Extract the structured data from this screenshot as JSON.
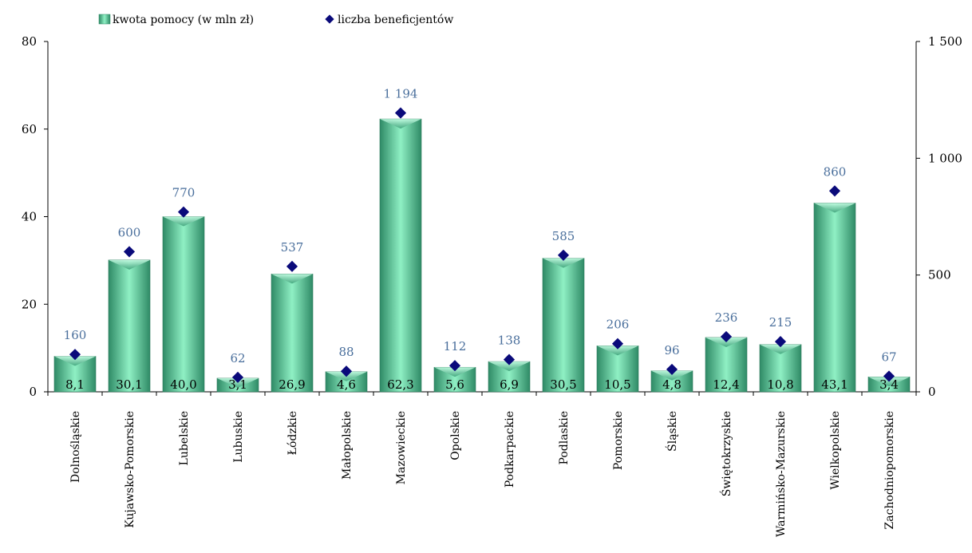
{
  "chart_data": {
    "type": "bar",
    "categories": [
      "Dolnośląskie",
      "Kujawsko-Pomorskie",
      "Lubelskie",
      "Lubuskie",
      "Łódzkie",
      "Małopolskie",
      "Mazowieckie",
      "Opolskie",
      "Podkarpackie",
      "Podlaskie",
      "Pomorskie",
      "Śląskie",
      "Świętokrzyskie",
      "Warmińsko-Mazurskie",
      "Wielkopolskie",
      "Zachodniopomorskie"
    ],
    "series": [
      {
        "name": "kwota pomocy (w mln zł)",
        "type": "bar",
        "axis": "left",
        "values": [
          8.1,
          30.1,
          40.0,
          3.1,
          26.9,
          4.6,
          62.3,
          5.6,
          6.9,
          30.5,
          10.5,
          4.8,
          12.4,
          10.8,
          43.1,
          3.4
        ],
        "labels": [
          "8,1",
          "30,1",
          "40,0",
          "3,1",
          "26,9",
          "4,6",
          "62,3",
          "5,6",
          "6,9",
          "30,5",
          "10,5",
          "4,8",
          "12,4",
          "10,8",
          "43,1",
          "3,4"
        ],
        "color": "#5fd1a2"
      },
      {
        "name": "liczba beneficjentów",
        "type": "scatter",
        "axis": "right",
        "values": [
          160,
          600,
          770,
          62,
          537,
          88,
          1194,
          112,
          138,
          585,
          206,
          96,
          236,
          215,
          860,
          67
        ],
        "labels": [
          "160",
          "600",
          "770",
          "62",
          "537",
          "88",
          "1 194",
          "112",
          "138",
          "585",
          "206",
          "96",
          "236",
          "215",
          "860",
          "67"
        ],
        "color": "#0a0a7a"
      }
    ],
    "y_left": {
      "min": 0,
      "max": 80,
      "ticks": [
        "0",
        "20",
        "40",
        "60",
        "80"
      ],
      "tick_values": [
        0,
        20,
        40,
        60,
        80
      ]
    },
    "y_right": {
      "min": 0,
      "max": 1500,
      "ticks": [
        "0",
        "500",
        "1 000",
        "1 500"
      ],
      "tick_values": [
        0,
        500,
        1000,
        1500
      ]
    },
    "grid": false,
    "legend_position": "top"
  }
}
